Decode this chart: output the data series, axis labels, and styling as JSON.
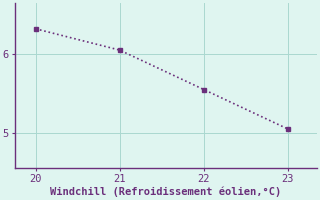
{
  "x": [
    20,
    21,
    22,
    23
  ],
  "y": [
    6.32,
    6.05,
    5.55,
    5.05
  ],
  "line_color": "#6b2f7b",
  "marker": "s",
  "marker_size": 3,
  "xlabel": "Windchill (Refroidissement éolien,°C)",
  "xlabel_color": "#6b2f7b",
  "background_color": "#dff5f0",
  "grid_color": "#aad8d0",
  "axis_color": "#6b2f7b",
  "tick_color": "#6b2f7b",
  "xlim": [
    19.75,
    23.35
  ],
  "ylim": [
    4.55,
    6.65
  ],
  "xticks": [
    20,
    21,
    22,
    23
  ],
  "yticks": [
    5,
    6
  ],
  "font_size": 7.5,
  "xlabel_font_size": 7.5
}
